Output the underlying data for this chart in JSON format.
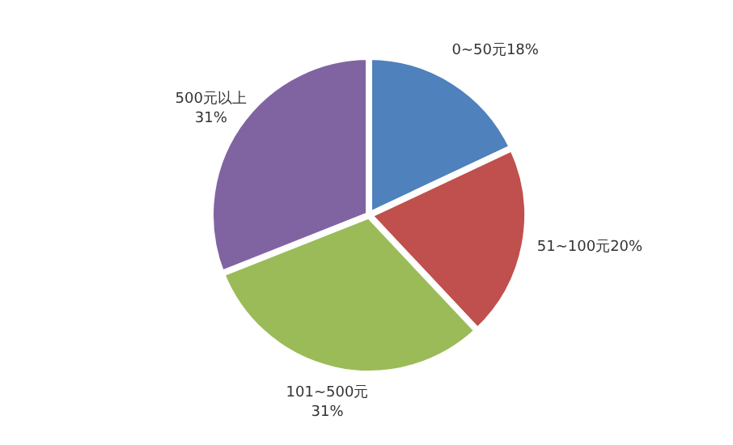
{
  "chart_data": {
    "type": "pie",
    "categories": [
      "0~50元",
      "51~100元",
      "101~500元",
      "500元以上"
    ],
    "values": [
      18,
      20,
      31,
      31
    ],
    "value_labels": [
      "18%",
      "20%",
      "31%",
      "31%"
    ],
    "colors": [
      "#4f81bd",
      "#c0504d",
      "#9bbb59",
      "#8064a2"
    ],
    "legend": false
  }
}
